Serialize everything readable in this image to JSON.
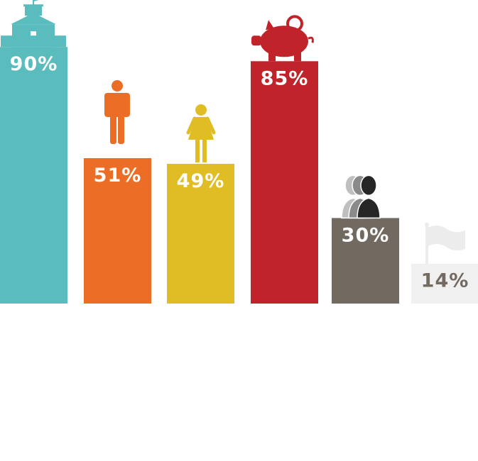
{
  "chart_data": {
    "type": "bar",
    "title": "",
    "xlabel": "",
    "ylabel": "",
    "ylim": [
      0,
      100
    ],
    "grid": false,
    "legend": "none",
    "bars": [
      {
        "value": 90,
        "label": "90%",
        "color": "#5bbcbd",
        "label_color": "#ffffff",
        "icon": "school-building-icon"
      },
      {
        "value": 51,
        "label": "51%",
        "color": "#ec6d25",
        "label_color": "#ffffff",
        "icon": "man-icon"
      },
      {
        "value": 49,
        "label": "49%",
        "color": "#e0bd25",
        "label_color": "#ffffff",
        "icon": "woman-icon"
      },
      {
        "value": 85,
        "label": "85%",
        "color": "#c0232a",
        "label_color": "#ffffff",
        "icon": "piggy-bank-icon"
      },
      {
        "value": 30,
        "label": "30%",
        "color": "#726a60",
        "label_color": "#ffffff",
        "icon": "group-silhouettes-icon"
      },
      {
        "value": 14,
        "label": "14%",
        "color": "#f0f0f0",
        "label_color": "#736b61",
        "icon": "flag-icon"
      }
    ]
  }
}
